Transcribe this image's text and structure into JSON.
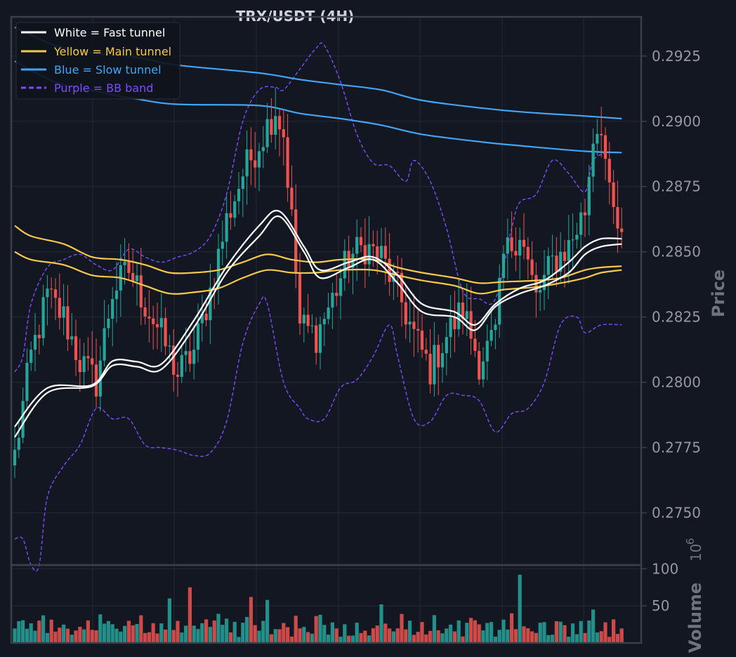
{
  "chart_data": {
    "type": "candlestick",
    "title": "TRX/USDT (4H)",
    "ylabel": "Price",
    "volume_label": "Volume",
    "volume_exponent_base": "10",
    "volume_exponent_power": "6",
    "ylim": [
      0.273,
      0.294
    ],
    "yticks": [
      "0.2750",
      "0.2775",
      "0.2800",
      "0.2825",
      "0.2850",
      "0.2875",
      "0.2900",
      "0.2925"
    ],
    "volume_ylim": [
      0,
      105
    ],
    "volume_ticks": [
      "50",
      "100"
    ],
    "legend": [
      {
        "label": "White = Fast tunnel",
        "color": "#ffffff",
        "style": "solid"
      },
      {
        "label": "Yellow = Main tunnel",
        "color": "#f7c948",
        "style": "solid"
      },
      {
        "label": "Blue = Slow tunnel",
        "color": "#42a5f5",
        "style": "solid"
      },
      {
        "label": "Purple = BB band",
        "color": "#7c4dff",
        "style": "dashed"
      }
    ],
    "candle_count": 150,
    "colors": {
      "up": "#26a69a",
      "down": "#ef5350",
      "fast": "#ffffff",
      "main": "#f7c948",
      "slow": "#42a5f5",
      "bb": "#7c4dff",
      "background": "#131722"
    },
    "close_anchors": [
      [
        0,
        0.2772
      ],
      [
        4,
        0.281
      ],
      [
        8,
        0.2833
      ],
      [
        12,
        0.2825
      ],
      [
        16,
        0.2808
      ],
      [
        20,
        0.28
      ],
      [
        24,
        0.2835
      ],
      [
        28,
        0.2843
      ],
      [
        32,
        0.283
      ],
      [
        36,
        0.2818
      ],
      [
        40,
        0.2803
      ],
      [
        44,
        0.2812
      ],
      [
        48,
        0.2835
      ],
      [
        52,
        0.2862
      ],
      [
        56,
        0.288
      ],
      [
        60,
        0.2892
      ],
      [
        64,
        0.2905
      ],
      [
        66,
        0.2895
      ],
      [
        68,
        0.2862
      ],
      [
        70,
        0.2822
      ],
      [
        74,
        0.2818
      ],
      [
        78,
        0.2832
      ],
      [
        82,
        0.2848
      ],
      [
        86,
        0.2852
      ],
      [
        90,
        0.2848
      ],
      [
        94,
        0.2835
      ],
      [
        98,
        0.2818
      ],
      [
        102,
        0.2805
      ],
      [
        106,
        0.2818
      ],
      [
        110,
        0.2828
      ],
      [
        114,
        0.2808
      ],
      [
        118,
        0.2818
      ],
      [
        120,
        0.2848
      ],
      [
        124,
        0.2858
      ],
      [
        128,
        0.2832
      ],
      [
        132,
        0.2846
      ],
      [
        136,
        0.2852
      ],
      [
        140,
        0.2866
      ],
      [
        142,
        0.2895
      ],
      [
        144,
        0.29
      ],
      [
        146,
        0.287
      ],
      [
        149,
        0.2853
      ]
    ],
    "fast_tunnel": {
      "upper": [
        [
          0,
          0.2783
        ],
        [
          8,
          0.27978
        ],
        [
          19,
          0.2799
        ],
        [
          24,
          0.28081
        ],
        [
          30,
          0.28079
        ],
        [
          36,
          0.2807
        ],
        [
          44,
          0.28238
        ],
        [
          52,
          0.28443
        ],
        [
          60,
          0.286
        ],
        [
          65,
          0.28655
        ],
        [
          71,
          0.2852
        ],
        [
          75,
          0.2843
        ],
        [
          82,
          0.2846
        ],
        [
          88,
          0.2848
        ],
        [
          94,
          0.2841
        ],
        [
          100,
          0.283
        ],
        [
          108,
          0.2827
        ],
        [
          113,
          0.2822
        ],
        [
          118,
          0.283
        ],
        [
          124,
          0.2836
        ],
        [
          130,
          0.2839
        ],
        [
          136,
          0.2846
        ],
        [
          140,
          0.2852
        ],
        [
          144,
          0.2855
        ],
        [
          149,
          0.2855
        ]
      ],
      "lower": [
        [
          0,
          0.2779
        ],
        [
          8,
          0.2796
        ],
        [
          19,
          0.27985
        ],
        [
          24,
          0.28064
        ],
        [
          30,
          0.2806
        ],
        [
          36,
          0.2805
        ],
        [
          44,
          0.2821
        ],
        [
          52,
          0.2842
        ],
        [
          60,
          0.2856
        ],
        [
          65,
          0.28635
        ],
        [
          71,
          0.285
        ],
        [
          75,
          0.284
        ],
        [
          82,
          0.2844
        ],
        [
          88,
          0.2847
        ],
        [
          94,
          0.2838
        ],
        [
          100,
          0.2827
        ],
        [
          108,
          0.2825
        ],
        [
          113,
          0.282
        ],
        [
          118,
          0.2829
        ],
        [
          124,
          0.2834
        ],
        [
          130,
          0.2837
        ],
        [
          136,
          0.2842
        ],
        [
          140,
          0.2849
        ],
        [
          144,
          0.2852
        ],
        [
          149,
          0.2853
        ]
      ]
    },
    "main_tunnel": {
      "upper": [
        [
          0,
          0.286
        ],
        [
          4,
          0.2856
        ],
        [
          12,
          0.2853
        ],
        [
          19,
          0.2848
        ],
        [
          26,
          0.2847
        ],
        [
          32,
          0.2845
        ],
        [
          38,
          0.2842
        ],
        [
          44,
          0.2842
        ],
        [
          50,
          0.2843
        ],
        [
          56,
          0.2846
        ],
        [
          62,
          0.2849
        ],
        [
          68,
          0.2847
        ],
        [
          74,
          0.2846
        ],
        [
          80,
          0.2847
        ],
        [
          88,
          0.2847
        ],
        [
          94,
          0.2844
        ],
        [
          100,
          0.2842
        ],
        [
          108,
          0.284
        ],
        [
          114,
          0.2838
        ],
        [
          120,
          0.28385
        ],
        [
          128,
          0.2839
        ],
        [
          134,
          0.284
        ],
        [
          140,
          0.2843
        ],
        [
          144,
          0.2844
        ],
        [
          149,
          0.28445
        ]
      ],
      "lower": [
        [
          0,
          0.285
        ],
        [
          4,
          0.2847
        ],
        [
          12,
          0.2845
        ],
        [
          19,
          0.2841
        ],
        [
          26,
          0.284
        ],
        [
          32,
          0.2837
        ],
        [
          38,
          0.2834
        ],
        [
          44,
          0.28345
        ],
        [
          50,
          0.2836
        ],
        [
          56,
          0.284
        ],
        [
          62,
          0.2843
        ],
        [
          68,
          0.2842
        ],
        [
          74,
          0.2842
        ],
        [
          80,
          0.2843
        ],
        [
          88,
          0.2843
        ],
        [
          94,
          0.2841
        ],
        [
          100,
          0.2839
        ],
        [
          108,
          0.2837
        ],
        [
          114,
          0.2834
        ],
        [
          120,
          0.28355
        ],
        [
          128,
          0.28365
        ],
        [
          134,
          0.2838
        ],
        [
          140,
          0.284
        ],
        [
          144,
          0.2842
        ],
        [
          149,
          0.2843
        ]
      ]
    },
    "slow_tunnel": {
      "upper": [
        [
          0,
          0.2936
        ],
        [
          10,
          0.2929
        ],
        [
          20,
          0.2926
        ],
        [
          30,
          0.29245
        ],
        [
          40,
          0.29215
        ],
        [
          60,
          0.29185
        ],
        [
          70,
          0.2916
        ],
        [
          80,
          0.2914
        ],
        [
          90,
          0.2912
        ],
        [
          100,
          0.2908
        ],
        [
          115,
          0.2905
        ],
        [
          125,
          0.29035
        ],
        [
          140,
          0.2902
        ],
        [
          149,
          0.2901
        ]
      ],
      "lower": [
        [
          0,
          0.2923
        ],
        [
          10,
          0.2915
        ],
        [
          20,
          0.29115
        ],
        [
          30,
          0.29085
        ],
        [
          40,
          0.29065
        ],
        [
          60,
          0.2906
        ],
        [
          70,
          0.2903
        ],
        [
          80,
          0.2901
        ],
        [
          90,
          0.28985
        ],
        [
          100,
          0.2895
        ],
        [
          115,
          0.2892
        ],
        [
          125,
          0.28905
        ],
        [
          140,
          0.28885
        ],
        [
          149,
          0.2888
        ]
      ]
    },
    "bb_band": {
      "upper": [
        [
          0,
          0.2804
        ],
        [
          2,
          0.281
        ],
        [
          4,
          0.283
        ],
        [
          8,
          0.2844
        ],
        [
          12,
          0.2847
        ],
        [
          16,
          0.2849
        ],
        [
          20,
          0.2845
        ],
        [
          24,
          0.2843
        ],
        [
          28,
          0.2851
        ],
        [
          32,
          0.2848
        ],
        [
          36,
          0.2846
        ],
        [
          40,
          0.2848
        ],
        [
          44,
          0.285
        ],
        [
          48,
          0.2856
        ],
        [
          52,
          0.2872
        ],
        [
          56,
          0.29
        ],
        [
          60,
          0.2912
        ],
        [
          64,
          0.2913
        ],
        [
          66,
          0.2912
        ],
        [
          70,
          0.292
        ],
        [
          74,
          0.2928
        ],
        [
          76,
          0.2929
        ],
        [
          80,
          0.2915
        ],
        [
          84,
          0.2895
        ],
        [
          88,
          0.2884
        ],
        [
          92,
          0.2883
        ],
        [
          96,
          0.2877
        ],
        [
          98,
          0.2885
        ],
        [
          102,
          0.2877
        ],
        [
          106,
          0.2859
        ],
        [
          110,
          0.2835
        ],
        [
          114,
          0.2832
        ],
        [
          118,
          0.2832
        ],
        [
          122,
          0.2859
        ],
        [
          124,
          0.2869
        ],
        [
          128,
          0.2872
        ],
        [
          132,
          0.2885
        ],
        [
          136,
          0.288
        ],
        [
          140,
          0.2873
        ],
        [
          142,
          0.2885
        ],
        [
          146,
          0.2888
        ],
        [
          149,
          0.2888
        ]
      ],
      "lower": [
        [
          0,
          0.274
        ],
        [
          2,
          0.274
        ],
        [
          4,
          0.273
        ],
        [
          6,
          0.273
        ],
        [
          8,
          0.2756
        ],
        [
          12,
          0.2768
        ],
        [
          16,
          0.2776
        ],
        [
          20,
          0.279
        ],
        [
          24,
          0.2786
        ],
        [
          28,
          0.2786
        ],
        [
          32,
          0.2776
        ],
        [
          36,
          0.2775
        ],
        [
          40,
          0.2774
        ],
        [
          44,
          0.2772
        ],
        [
          48,
          0.2773
        ],
        [
          52,
          0.2785
        ],
        [
          56,
          0.2815
        ],
        [
          60,
          0.283
        ],
        [
          62,
          0.283
        ],
        [
          66,
          0.28
        ],
        [
          70,
          0.279
        ],
        [
          72,
          0.2786
        ],
        [
          76,
          0.2786
        ],
        [
          80,
          0.2798
        ],
        [
          84,
          0.2801
        ],
        [
          88,
          0.281
        ],
        [
          92,
          0.2822
        ],
        [
          94,
          0.281
        ],
        [
          98,
          0.2786
        ],
        [
          102,
          0.2785
        ],
        [
          106,
          0.2795
        ],
        [
          110,
          0.2795
        ],
        [
          114,
          0.2793
        ],
        [
          118,
          0.2781
        ],
        [
          122,
          0.2788
        ],
        [
          126,
          0.279
        ],
        [
          130,
          0.28
        ],
        [
          134,
          0.2822
        ],
        [
          138,
          0.2825
        ],
        [
          140,
          0.2819
        ],
        [
          144,
          0.2822
        ],
        [
          149,
          0.2822
        ]
      ]
    },
    "volume_spikes": [
      [
        38,
        60
      ],
      [
        43,
        75
      ],
      [
        58,
        62
      ],
      [
        62,
        58
      ],
      [
        90,
        52
      ],
      [
        122,
        40
      ],
      [
        124,
        92
      ],
      [
        142,
        45
      ]
    ]
  }
}
